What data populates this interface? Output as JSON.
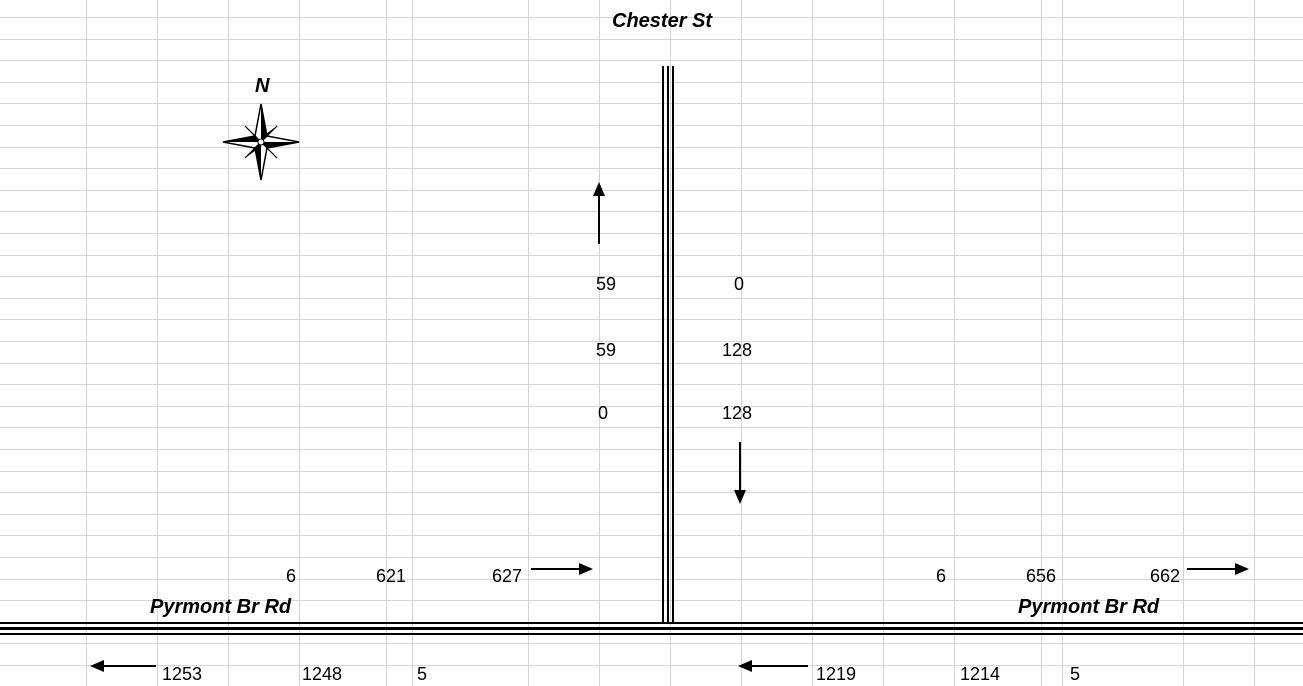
{
  "north_street": "Chester St",
  "north_label": "N",
  "west_street": "Pyrmont Br Rd",
  "east_street": "Pyrmont Br Rd",
  "north_leg": {
    "left_values": [
      "59",
      "59",
      "0"
    ],
    "right_values": [
      "0",
      "128",
      "128"
    ]
  },
  "west_leg": {
    "eastbound": [
      "6",
      "621",
      "627"
    ],
    "westbound": [
      "1253",
      "1248",
      "5"
    ]
  },
  "east_leg": {
    "eastbound": [
      "6",
      "656",
      "662"
    ],
    "westbound": [
      "1219",
      "1214",
      "5"
    ]
  }
}
